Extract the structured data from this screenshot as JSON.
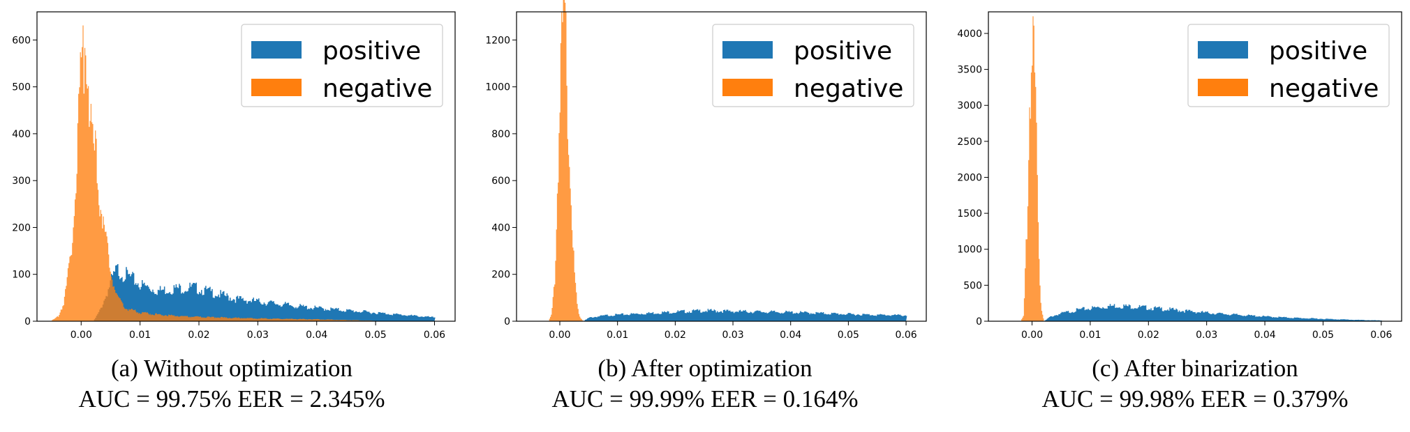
{
  "colors": {
    "positive": "#1f77b4",
    "negative": "#ff7f0e",
    "axis": "#000000",
    "legend_border": "#cccccc"
  },
  "chart_data": [
    {
      "type": "histogram",
      "caption_label": "(a)",
      "caption_title": "Without optimization",
      "caption_metrics": "AUC = 99.75%  EER = 2.345%",
      "xlim": [
        -0.0075,
        0.0635
      ],
      "ylim": [
        0,
        660
      ],
      "xticks": [
        0.0,
        0.01,
        0.02,
        0.03,
        0.04,
        0.05,
        0.06
      ],
      "xtick_labels": [
        "0.00",
        "0.01",
        "0.02",
        "0.03",
        "0.04",
        "0.05",
        "0.06"
      ],
      "yticks": [
        0,
        100,
        200,
        300,
        400,
        500,
        600
      ],
      "ytick_labels": [
        "0",
        "100",
        "200",
        "300",
        "400",
        "500",
        "600"
      ],
      "legend_position": "top-right",
      "series": [
        {
          "name": "positive",
          "x": [
            0.002,
            0.003,
            0.004,
            0.005,
            0.006,
            0.008,
            0.01,
            0.013,
            0.016,
            0.019,
            0.022,
            0.026,
            0.03,
            0.034,
            0.038,
            0.042,
            0.046,
            0.05,
            0.054,
            0.058,
            0.06
          ],
          "y": [
            0,
            20,
            50,
            85,
            110,
            95,
            78,
            65,
            70,
            72,
            62,
            48,
            42,
            36,
            30,
            26,
            22,
            18,
            14,
            10,
            8
          ]
        },
        {
          "name": "negative",
          "x": [
            -0.005,
            -0.004,
            -0.003,
            -0.002,
            -0.001,
            -0.0005,
            0.0,
            0.0005,
            0.001,
            0.0015,
            0.002,
            0.003,
            0.004,
            0.005,
            0.006,
            0.007,
            0.008,
            0.01,
            0.015,
            0.02,
            0.03,
            0.04,
            0.05
          ],
          "y": [
            2,
            10,
            40,
            120,
            290,
            420,
            560,
            600,
            560,
            460,
            380,
            280,
            180,
            100,
            55,
            35,
            25,
            18,
            12,
            9,
            6,
            4,
            1
          ]
        }
      ]
    },
    {
      "type": "histogram",
      "caption_label": "(b)",
      "caption_title": "After optimization",
      "caption_metrics": "AUC = 99.99%  EER = 0.164%",
      "xlim": [
        -0.0075,
        0.0635
      ],
      "ylim": [
        0,
        1320
      ],
      "xticks": [
        0.0,
        0.01,
        0.02,
        0.03,
        0.04,
        0.05,
        0.06
      ],
      "xtick_labels": [
        "0.00",
        "0.01",
        "0.02",
        "0.03",
        "0.04",
        "0.05",
        "0.06"
      ],
      "yticks": [
        0,
        200,
        400,
        600,
        800,
        1000,
        1200
      ],
      "ytick_labels": [
        "0",
        "200",
        "400",
        "600",
        "800",
        "1000",
        "1200"
      ],
      "legend_position": "top-right",
      "series": [
        {
          "name": "positive",
          "x": [
            0.004,
            0.005,
            0.008,
            0.012,
            0.016,
            0.02,
            0.025,
            0.03,
            0.035,
            0.04,
            0.045,
            0.05,
            0.055,
            0.06
          ],
          "y": [
            0,
            15,
            25,
            30,
            35,
            40,
            45,
            42,
            40,
            38,
            34,
            30,
            27,
            25
          ]
        },
        {
          "name": "negative",
          "x": [
            -0.002,
            -0.0015,
            -0.001,
            -0.0005,
            0.0,
            0.0005,
            0.001,
            0.0015,
            0.002,
            0.0025,
            0.003,
            0.0035,
            0.004
          ],
          "y": [
            0,
            30,
            150,
            550,
            1050,
            1260,
            1150,
            800,
            450,
            180,
            60,
            15,
            0
          ]
        }
      ]
    },
    {
      "type": "histogram",
      "caption_label": "(c)",
      "caption_title": "After binarization",
      "caption_metrics": "AUC = 99.98%  EER = 0.379%",
      "xlim": [
        -0.0075,
        0.0635
      ],
      "ylim": [
        0,
        4300
      ],
      "xticks": [
        0.0,
        0.01,
        0.02,
        0.03,
        0.04,
        0.05,
        0.06
      ],
      "xtick_labels": [
        "0.00",
        "0.01",
        "0.02",
        "0.03",
        "0.04",
        "0.05",
        "0.06"
      ],
      "yticks": [
        0,
        500,
        1000,
        1500,
        2000,
        2500,
        3000,
        3500,
        4000
      ],
      "ytick_labels": [
        "0",
        "500",
        "1000",
        "1500",
        "2000",
        "2500",
        "3000",
        "3500",
        "4000"
      ],
      "legend_position": "top-right",
      "series": [
        {
          "name": "positive",
          "x": [
            0.002,
            0.003,
            0.005,
            0.008,
            0.011,
            0.014,
            0.017,
            0.02,
            0.024,
            0.028,
            0.032,
            0.036,
            0.04,
            0.044,
            0.048,
            0.052,
            0.056,
            0.06
          ],
          "y": [
            0,
            60,
            110,
            160,
            190,
            215,
            205,
            185,
            160,
            130,
            105,
            85,
            65,
            50,
            38,
            28,
            18,
            10
          ]
        },
        {
          "name": "negative",
          "x": [
            -0.002,
            -0.0015,
            -0.001,
            -0.0005,
            0.0,
            0.0005,
            0.001,
            0.0015,
            0.002
          ],
          "y": [
            0,
            80,
            1200,
            3000,
            4100,
            3100,
            1200,
            200,
            0
          ]
        }
      ]
    }
  ]
}
